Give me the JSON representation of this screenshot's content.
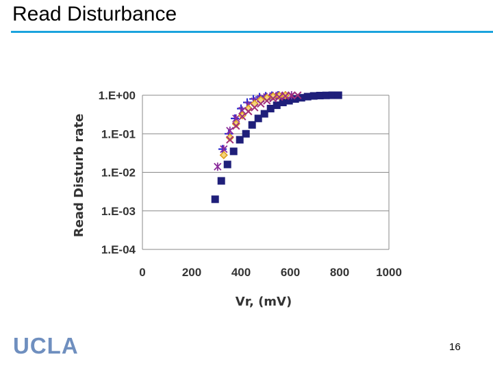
{
  "slide": {
    "title": "Read Disturbance",
    "logo": "UCLA",
    "page_number": "16"
  },
  "colors": {
    "title_rule": "#1aa3dd",
    "series_square": "#1f1f7a",
    "series_plus": "#2f2fd0",
    "series_asterisk": "#8a2a9a",
    "series_diamond": "#e0a020",
    "series_x": "#a0307a",
    "grid": "#888888",
    "logo": "#6f8fbf"
  },
  "chart_data": {
    "type": "scatter",
    "title": "",
    "xlabel": "Vr, (mV)",
    "ylabel": "Read Disturb rate",
    "xlim": [
      0,
      1000
    ],
    "ylim_log10": [
      -4,
      0
    ],
    "y_scale": "log",
    "x_ticks": [
      0,
      200,
      400,
      600,
      800,
      1000
    ],
    "y_ticks": [
      {
        "label": "1.E+00",
        "log": 0
      },
      {
        "label": "1.E-01",
        "log": -1
      },
      {
        "label": "1.E-02",
        "log": -2
      },
      {
        "label": "1.E-03",
        "log": -3
      },
      {
        "label": "1.E-04",
        "log": -4
      }
    ],
    "grid": true,
    "legend": "none",
    "series": [
      {
        "name": "square",
        "marker": "square",
        "color": "#1f1f7a",
        "points": [
          [
            295,
            0.002
          ],
          [
            320,
            0.006
          ],
          [
            345,
            0.016
          ],
          [
            370,
            0.035
          ],
          [
            395,
            0.07
          ],
          [
            420,
            0.1
          ],
          [
            445,
            0.17
          ],
          [
            470,
            0.25
          ],
          [
            495,
            0.33
          ],
          [
            520,
            0.45
          ],
          [
            545,
            0.55
          ],
          [
            570,
            0.65
          ],
          [
            595,
            0.72
          ],
          [
            620,
            0.8
          ],
          [
            645,
            0.86
          ],
          [
            670,
            0.92
          ],
          [
            695,
            0.96
          ],
          [
            720,
            0.98
          ],
          [
            745,
            0.99
          ],
          [
            770,
            1.0
          ],
          [
            795,
            1.0
          ]
        ]
      },
      {
        "name": "plus",
        "marker": "plus",
        "color": "#2f2fd0",
        "points": [
          [
            325,
            0.04
          ],
          [
            350,
            0.1
          ],
          [
            375,
            0.25
          ],
          [
            400,
            0.45
          ],
          [
            425,
            0.65
          ],
          [
            450,
            0.8
          ],
          [
            475,
            0.9
          ],
          [
            500,
            0.95
          ],
          [
            525,
            0.98
          ],
          [
            550,
            1.0
          ]
        ]
      },
      {
        "name": "asterisk",
        "marker": "asterisk",
        "color": "#8a2a9a",
        "points": [
          [
            305,
            0.014
          ],
          [
            330,
            0.04
          ],
          [
            355,
            0.12
          ],
          [
            380,
            0.25
          ],
          [
            405,
            0.4
          ],
          [
            430,
            0.55
          ],
          [
            455,
            0.7
          ],
          [
            480,
            0.82
          ],
          [
            505,
            0.9
          ],
          [
            530,
            0.96
          ],
          [
            555,
            0.99
          ],
          [
            580,
            1.0
          ],
          [
            605,
            1.0
          ]
        ]
      },
      {
        "name": "diamond",
        "marker": "diamond",
        "color": "#e0a020",
        "points": [
          [
            330,
            0.028
          ],
          [
            355,
            0.08
          ],
          [
            380,
            0.18
          ],
          [
            405,
            0.3
          ],
          [
            430,
            0.45
          ],
          [
            455,
            0.6
          ],
          [
            480,
            0.75
          ],
          [
            505,
            0.85
          ],
          [
            530,
            0.93
          ],
          [
            555,
            0.97
          ],
          [
            580,
            1.0
          ]
        ]
      },
      {
        "name": "x-mark",
        "marker": "x",
        "color": "#a0307a",
        "points": [
          [
            355,
            0.07
          ],
          [
            380,
            0.16
          ],
          [
            405,
            0.28
          ],
          [
            430,
            0.38
          ],
          [
            455,
            0.48
          ],
          [
            480,
            0.6
          ],
          [
            505,
            0.72
          ],
          [
            530,
            0.82
          ],
          [
            555,
            0.9
          ],
          [
            580,
            0.95
          ],
          [
            605,
            0.98
          ],
          [
            630,
            1.0
          ]
        ]
      }
    ]
  }
}
